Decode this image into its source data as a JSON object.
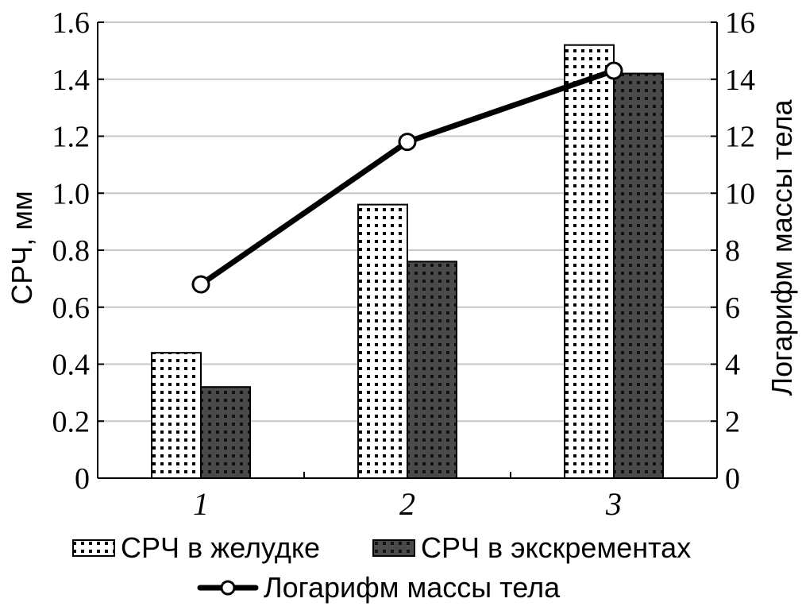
{
  "chart_data": {
    "type": "bar",
    "categories": [
      "1",
      "2",
      "3"
    ],
    "series": [
      {
        "name": "СРЧ в желудке",
        "values": [
          0.44,
          0.96,
          1.52
        ],
        "axis": "left",
        "style": "dotted-light",
        "color": "#ffffff"
      },
      {
        "name": "СРЧ в экскрементах",
        "values": [
          0.32,
          0.76,
          1.42
        ],
        "axis": "left",
        "style": "dotted-dark",
        "color": "#4a4a4a"
      },
      {
        "name": "Логарифм массы тела",
        "values": [
          6.8,
          11.8,
          14.3
        ],
        "axis": "right",
        "style": "line-markers",
        "color": "#000000"
      }
    ],
    "ylabel": "СРЧ, мм",
    "ylabel_right": "Логарифм массы тела",
    "ylim": [
      0,
      1.6
    ],
    "ylim_right": [
      0,
      16
    ],
    "yticks": [
      "0",
      "0.2",
      "0.4",
      "0.6",
      "0.8",
      "1.0",
      "1.2",
      "1.4",
      "1.6"
    ],
    "yticks_right": [
      "0",
      "2",
      "4",
      "6",
      "8",
      "10",
      "12",
      "14",
      "16"
    ],
    "grid": true,
    "legend_placement": "bottom"
  },
  "legend": {
    "item1": "СРЧ в желудке",
    "item2": "СРЧ в экскрементах",
    "item3": "Логарифм массы тела"
  }
}
